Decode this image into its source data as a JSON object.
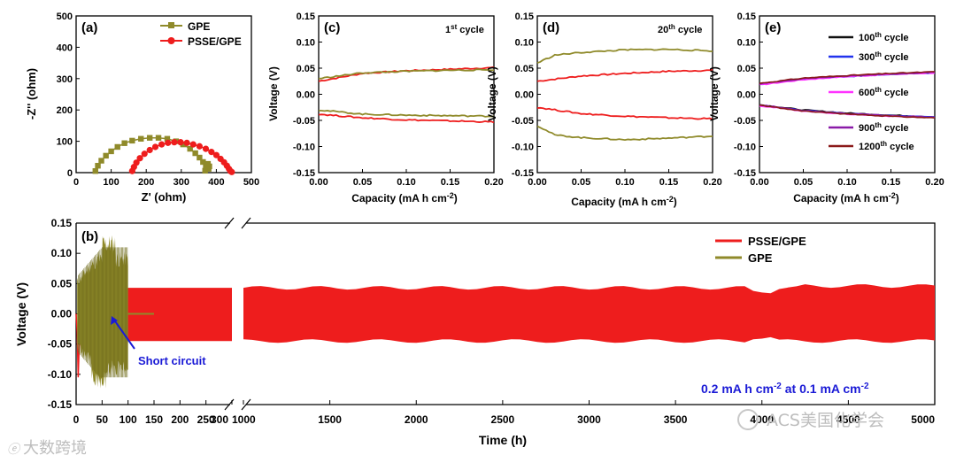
{
  "chart_data": [
    {
      "panel": "(a)",
      "type": "scatter",
      "xlabel": "Z' (ohm)",
      "ylabel": "-Z'' (ohm)",
      "xlim": [
        0,
        500
      ],
      "ylim": [
        0,
        500
      ],
      "xticks": [
        "0",
        "100",
        "200",
        "300",
        "400",
        "500"
      ],
      "yticks": [
        "0",
        "100",
        "200",
        "300",
        "400",
        "500"
      ],
      "series": [
        {
          "name": "GPE",
          "color": "#8f8a2a",
          "marker": "square",
          "x": [
            55,
            62,
            72,
            85,
            100,
            118,
            138,
            160,
            185,
            210,
            235,
            260,
            285,
            305,
            325,
            340,
            352,
            362,
            370,
            378,
            380,
            376,
            372,
            368
          ],
          "y": [
            5,
            22,
            38,
            54,
            68,
            82,
            94,
            102,
            108,
            111,
            111,
            108,
            100,
            90,
            76,
            62,
            48,
            34,
            22,
            12,
            20,
            28,
            14,
            6
          ]
        },
        {
          "name": "PSSE/GPE",
          "color": "#ee1d1d",
          "marker": "circle",
          "x": [
            160,
            165,
            172,
            182,
            195,
            210,
            226,
            244,
            262,
            280,
            298,
            316,
            334,
            352,
            370,
            386,
            400,
            412,
            422,
            430,
            436,
            440,
            444
          ],
          "y": [
            5,
            18,
            32,
            46,
            60,
            72,
            82,
            90,
            95,
            97,
            97,
            95,
            90,
            84,
            76,
            66,
            56,
            44,
            33,
            22,
            12,
            5,
            2
          ]
        }
      ]
    },
    {
      "panel": "(b)",
      "type": "line",
      "xlabel": "Time (h)",
      "ylabel": "Voltage (V)",
      "ylim": [
        -0.15,
        0.15
      ],
      "yticks": [
        "-0.15",
        "-0.10",
        "-0.05",
        "0.00",
        "0.05",
        "0.10",
        "0.15"
      ],
      "xticks_left": [
        "0",
        "50",
        "100",
        "150",
        "200",
        "250",
        "300"
      ],
      "xticks_right": [
        "1000",
        "1500",
        "2000",
        "2500",
        "3000",
        "3500",
        "4000",
        "4500",
        "5000"
      ],
      "x_break": "between 300 and 1000",
      "series": [
        {
          "name": "PSSE/GPE",
          "color": "#ee1d1d",
          "envelope_V": [
            -0.045,
            0.043
          ],
          "time_range_h": [
            0,
            5000
          ]
        },
        {
          "name": "GPE",
          "color": "#8f8a2a",
          "envelope_V": [
            -0.11,
            0.12
          ],
          "time_range_h": [
            0,
            100
          ],
          "short_circuit_at_h": 100
        }
      ],
      "annotations": {
        "short_circuit": "Short circuit",
        "condition": "0.2 mA h cm⁻² at 0.1 mA cm⁻²"
      }
    },
    {
      "panel": "(c)",
      "type": "line",
      "title": "1st cycle",
      "xlabel": "Capacity (mA h cm⁻²)",
      "ylabel": "Voltage (V)",
      "xlim": [
        0,
        0.2
      ],
      "ylim": [
        -0.15,
        0.15
      ],
      "series": [
        {
          "name": "PSSE/GPE charge",
          "color": "#ee1d1d",
          "x": [
            0,
            0.05,
            0.1,
            0.15,
            0.2
          ],
          "y": [
            0.025,
            0.04,
            0.045,
            0.048,
            0.051
          ]
        },
        {
          "name": "PSSE/GPE discharge",
          "color": "#ee1d1d",
          "x": [
            0,
            0.05,
            0.1,
            0.15,
            0.2
          ],
          "y": [
            -0.038,
            -0.045,
            -0.049,
            -0.051,
            -0.053
          ]
        },
        {
          "name": "GPE charge",
          "color": "#8f8a2a",
          "x": [
            0,
            0.05,
            0.1,
            0.15,
            0.2
          ],
          "y": [
            0.03,
            0.041,
            0.044,
            0.046,
            0.047
          ]
        },
        {
          "name": "GPE discharge",
          "color": "#8f8a2a",
          "x": [
            0,
            0.05,
            0.1,
            0.15,
            0.2
          ],
          "y": [
            -0.03,
            -0.038,
            -0.04,
            -0.041,
            -0.042
          ]
        }
      ]
    },
    {
      "panel": "(d)",
      "type": "line",
      "title": "20th cycle",
      "xlabel": "Capacity (mA h cm⁻²)",
      "ylabel": "Voltage (V)",
      "xlim": [
        0,
        0.2
      ],
      "ylim": [
        -0.15,
        0.15
      ],
      "series": [
        {
          "name": "PSSE/GPE charge",
          "color": "#ee1d1d",
          "x": [
            0,
            0.05,
            0.1,
            0.15,
            0.2
          ],
          "y": [
            0.025,
            0.035,
            0.04,
            0.044,
            0.046
          ]
        },
        {
          "name": "PSSE/GPE discharge",
          "color": "#ee1d1d",
          "x": [
            0,
            0.05,
            0.1,
            0.15,
            0.2
          ],
          "y": [
            -0.025,
            -0.037,
            -0.042,
            -0.045,
            -0.047
          ]
        },
        {
          "name": "GPE charge",
          "color": "#8f8a2a",
          "x": [
            0,
            0.02,
            0.05,
            0.1,
            0.15,
            0.2
          ],
          "y": [
            0.06,
            0.075,
            0.08,
            0.085,
            0.086,
            0.083
          ]
        },
        {
          "name": "GPE discharge",
          "color": "#8f8a2a",
          "x": [
            0,
            0.02,
            0.05,
            0.1,
            0.15,
            0.2
          ],
          "y": [
            -0.06,
            -0.078,
            -0.083,
            -0.087,
            -0.084,
            -0.08
          ]
        }
      ]
    },
    {
      "panel": "(e)",
      "type": "line",
      "xlabel": "Capacity (mA h cm⁻²)",
      "ylabel": "Voltage (V)",
      "xlim": [
        0,
        0.2
      ],
      "ylim": [
        -0.15,
        0.15
      ],
      "series": [
        {
          "name": "100th cycle",
          "color": "#111111",
          "up": [
            0.02,
            0.03,
            0.035,
            0.039,
            0.042
          ],
          "down": [
            -0.02,
            -0.03,
            -0.036,
            -0.04,
            -0.043
          ]
        },
        {
          "name": "300th cycle",
          "color": "#2233ee",
          "up": [
            0.019,
            0.029,
            0.034,
            0.038,
            0.041
          ],
          "down": [
            -0.021,
            -0.031,
            -0.037,
            -0.041,
            -0.044
          ]
        },
        {
          "name": "600th cycle",
          "color": "#ff33ff",
          "up": [
            0.018,
            0.028,
            0.034,
            0.038,
            0.041
          ],
          "down": [
            -0.022,
            -0.032,
            -0.038,
            -0.042,
            -0.045
          ]
        },
        {
          "name": "900th cycle",
          "color": "#8a1aa8",
          "up": [
            0.02,
            0.03,
            0.035,
            0.039,
            0.042
          ],
          "down": [
            -0.02,
            -0.031,
            -0.037,
            -0.041,
            -0.044
          ]
        },
        {
          "name": "1200th cycle",
          "color": "#8b1a1a",
          "up": [
            0.021,
            0.031,
            0.036,
            0.04,
            0.043
          ],
          "down": [
            -0.021,
            -0.032,
            -0.038,
            -0.042,
            -0.045
          ]
        }
      ]
    }
  ],
  "labels": {
    "panel_a": "(a)",
    "panel_b": "(b)",
    "panel_c": "(c)",
    "panel_d": "(d)",
    "panel_e": "(e)",
    "a_xlabel": "Z' (ohm)",
    "a_ylabel": "-Z'' (ohm)",
    "legend_gpe": "GPE",
    "legend_psse": "PSSE/GPE",
    "voltage": "Voltage (V)",
    "capacity": "Capacity (mA h cm",
    "capacity_sup": "-2",
    "capacity_end": ")",
    "c_title": "1",
    "c_title_sup": "st",
    "c_title_rest": " cycle",
    "d_title": "20",
    "d_title_sup": "th",
    "d_title_rest": " cycle",
    "e_legend": [
      {
        "n": "100",
        "sup": "th",
        "rest": " cycle"
      },
      {
        "n": "300",
        "sup": "th",
        "rest": " cycle"
      },
      {
        "n": "600",
        "sup": "th",
        "rest": " cycle"
      },
      {
        "n": "900",
        "sup": "th",
        "rest": " cycle"
      },
      {
        "n": "1200",
        "sup": "th",
        "rest": " cycle"
      }
    ],
    "b_xlabel": "Time (h)",
    "short_circuit": "Short circuit",
    "cond_1": "0.2 mA h cm",
    "cond_sup1": "-2",
    "cond_2": " at 0.1 mA cm",
    "cond_sup2": "-2",
    "yticks_015": [
      "0.15",
      "0.10",
      "0.05",
      "0.00",
      "-0.05",
      "-0.10",
      "-0.15"
    ],
    "cap_ticks": [
      "0.00",
      "0.05",
      "0.10",
      "0.15",
      "0.20"
    ],
    "a_ticks": [
      "0",
      "100",
      "200",
      "300",
      "400",
      "500"
    ],
    "b_ticks_left": [
      "0",
      "50",
      "100",
      "150",
      "200",
      "250",
      "300"
    ],
    "b_ticks_right": [
      "1000",
      "1500",
      "2000",
      "2500",
      "3000",
      "3500",
      "4000",
      "4500",
      "5000"
    ]
  },
  "watermarks": {
    "left": "大数跨境",
    "right": "ACS美国化学会"
  },
  "colors": {
    "gpe": "#8f8a2a",
    "psse": "#ee1d1d",
    "annotation": "#1a1ad6"
  }
}
